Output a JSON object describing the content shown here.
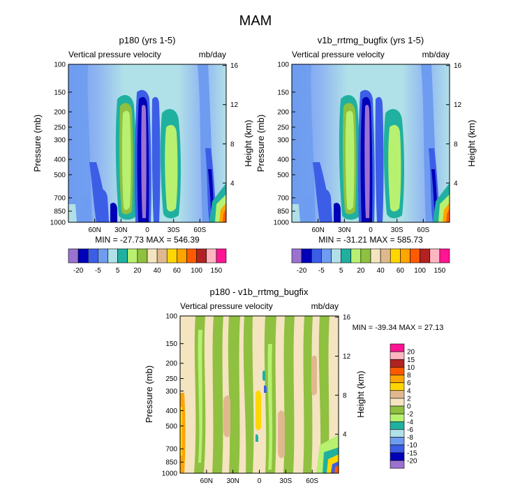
{
  "figure_title": "MAM",
  "chart_data": [
    {
      "type": "heatmap",
      "title": "p180 (yrs 1-5)",
      "variable_label": "Vertical pressure velocity",
      "units_label": "mb/day",
      "ylabel": "Pressure (mb)",
      "y2label": "Height (km)",
      "yticks": [
        "100",
        "150",
        "200",
        "250",
        "300",
        "400",
        "500",
        "700",
        "850",
        "1000"
      ],
      "y2ticks": [
        "16",
        "12",
        "8",
        "4"
      ],
      "xticks": [
        "60N",
        "30N",
        "0",
        "30S",
        "60S"
      ],
      "stats": "MIN = -27.73  MAX = 546.39",
      "colorbar_labels": [
        "-20",
        "-5",
        "5",
        "20",
        "40",
        "60",
        "100",
        "150"
      ],
      "colorbar_colors": [
        "#9b72d0",
        "#0000b8",
        "#3c5ee6",
        "#6e9cf0",
        "#b0e0e8",
        "#20b0a0",
        "#b8f070",
        "#8fc040",
        "#f4e4c0",
        "#e0b890",
        "#ffd700",
        "#ffa500",
        "#ff5a00",
        "#b22222",
        "#ffb6c1",
        "#ff1493"
      ]
    },
    {
      "type": "heatmap",
      "title": "v1b_rrtmg_bugfix (yrs 1-5)",
      "variable_label": "Vertical pressure velocity",
      "units_label": "mb/day",
      "ylabel": "Pressure (mb)",
      "y2label": "Height (km)",
      "yticks": [
        "100",
        "150",
        "200",
        "250",
        "300",
        "400",
        "500",
        "700",
        "850",
        "1000"
      ],
      "y2ticks": [
        "16",
        "12",
        "8",
        "4"
      ],
      "xticks": [
        "60N",
        "30N",
        "0",
        "30S",
        "60S"
      ],
      "stats": "MIN = -31.21  MAX = 585.73",
      "colorbar_labels": [
        "-20",
        "-5",
        "5",
        "20",
        "40",
        "60",
        "100",
        "150"
      ],
      "colorbar_colors": [
        "#9b72d0",
        "#0000b8",
        "#3c5ee6",
        "#6e9cf0",
        "#b0e0e8",
        "#20b0a0",
        "#b8f070",
        "#8fc040",
        "#f4e4c0",
        "#e0b890",
        "#ffd700",
        "#ffa500",
        "#ff5a00",
        "#b22222",
        "#ffb6c1",
        "#ff1493"
      ]
    },
    {
      "type": "heatmap",
      "title": "p180 - v1b_rrtmg_bugfix",
      "variable_label": "Vertical pressure velocity",
      "units_label": "mb/day",
      "ylabel": "Pressure (mb)",
      "y2label": "Height (km)",
      "yticks": [
        "100",
        "150",
        "200",
        "250",
        "300",
        "400",
        "500",
        "700",
        "850",
        "1000"
      ],
      "y2ticks": [
        "16",
        "12",
        "8",
        "4"
      ],
      "xticks": [
        "60N",
        "30N",
        "0",
        "30S",
        "60S"
      ],
      "stats": "MIN = -39.34  MAX =  27.13",
      "colorbar_labels": [
        "20",
        "15",
        "10",
        "8",
        "6",
        "4",
        "2",
        "0",
        "-2",
        "-4",
        "-6",
        "-8",
        "-10",
        "-15",
        "-20"
      ],
      "colorbar_colors": [
        "#ff1493",
        "#ffb6c1",
        "#b22222",
        "#ff5a00",
        "#ffa500",
        "#ffd700",
        "#e0b890",
        "#f4e4c0",
        "#8fc040",
        "#b8f070",
        "#20b0a0",
        "#b0e0e8",
        "#6e9cf0",
        "#3c5ee6",
        "#0000b8",
        "#9b72d0"
      ]
    }
  ]
}
